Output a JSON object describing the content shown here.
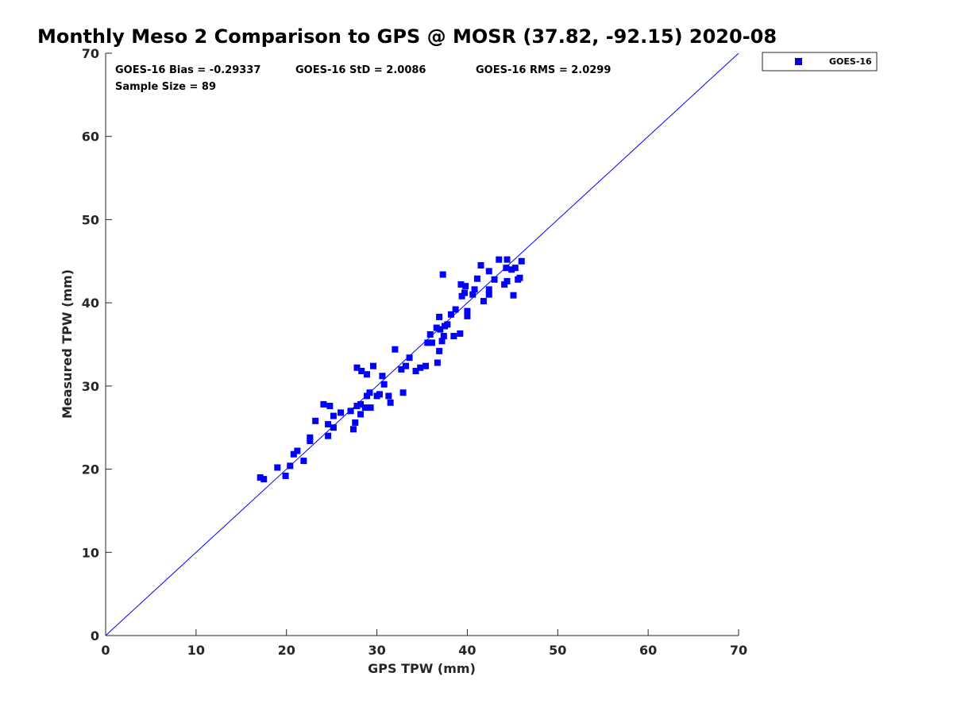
{
  "chart_data": {
    "type": "scatter",
    "title": "Monthly Meso 2 Comparison to GPS @ MOSR (37.82, -92.15) 2020-08",
    "xlabel": "GPS TPW (mm)",
    "ylabel": "Measured TPW (mm)",
    "xlim": [
      0,
      70
    ],
    "ylim": [
      0,
      70
    ],
    "xticks": [
      "0",
      "10",
      "20",
      "30",
      "40",
      "50",
      "60",
      "70"
    ],
    "yticks": [
      "0",
      "10",
      "20",
      "30",
      "40",
      "50",
      "60",
      "70"
    ],
    "grid": false,
    "legend_position": "outside-top-right",
    "reference_line": {
      "from": [
        0,
        0
      ],
      "to": [
        70,
        70
      ],
      "color": "#0000ff"
    },
    "stats": {
      "bias": "GOES-16 Bias = -0.29337",
      "std": "GOES-16 StD = 2.0086",
      "rms": "GOES-16 RMS = 2.0299",
      "sample": "Sample Size = 89"
    },
    "series": [
      {
        "name": "GOES-16",
        "color": "#0000ff",
        "marker": "square",
        "points": [
          [
            17.1,
            19.0
          ],
          [
            17.5,
            18.8
          ],
          [
            19.0,
            20.2
          ],
          [
            19.9,
            19.2
          ],
          [
            20.4,
            20.4
          ],
          [
            20.8,
            21.8
          ],
          [
            21.2,
            22.2
          ],
          [
            21.9,
            21.0
          ],
          [
            22.6,
            23.4
          ],
          [
            22.6,
            23.8
          ],
          [
            24.1,
            27.8
          ],
          [
            24.6,
            25.4
          ],
          [
            24.6,
            24.0
          ],
          [
            24.8,
            27.6
          ],
          [
            25.2,
            26.4
          ],
          [
            25.2,
            25.0
          ],
          [
            27.1,
            27.0
          ],
          [
            27.4,
            24.8
          ],
          [
            27.6,
            25.6
          ],
          [
            27.8,
            27.6
          ],
          [
            27.8,
            32.2
          ],
          [
            28.2,
            27.8
          ],
          [
            28.2,
            26.6
          ],
          [
            28.3,
            31.8
          ],
          [
            28.7,
            27.4
          ],
          [
            28.9,
            28.8
          ],
          [
            28.9,
            31.4
          ],
          [
            29.2,
            29.2
          ],
          [
            29.3,
            27.4
          ],
          [
            29.6,
            32.4
          ],
          [
            30.0,
            28.8
          ],
          [
            30.3,
            29.0
          ],
          [
            30.6,
            31.2
          ],
          [
            31.3,
            28.8
          ],
          [
            31.5,
            28.0
          ],
          [
            32.0,
            34.4
          ],
          [
            32.7,
            32.0
          ],
          [
            32.9,
            29.2
          ],
          [
            33.2,
            32.4
          ],
          [
            34.3,
            31.8
          ],
          [
            34.8,
            32.2
          ],
          [
            35.4,
            32.4
          ],
          [
            35.6,
            35.2
          ],
          [
            35.9,
            36.2
          ],
          [
            36.1,
            35.2
          ],
          [
            36.6,
            37.0
          ],
          [
            36.7,
            32.8
          ],
          [
            36.9,
            34.2
          ],
          [
            36.9,
            38.3
          ],
          [
            37.0,
            36.8
          ],
          [
            37.2,
            35.4
          ],
          [
            37.3,
            43.4
          ],
          [
            37.4,
            36.0
          ],
          [
            37.5,
            37.2
          ],
          [
            37.8,
            37.4
          ],
          [
            38.5,
            36.0
          ],
          [
            38.7,
            39.2
          ],
          [
            39.2,
            36.3
          ],
          [
            39.3,
            42.2
          ],
          [
            39.4,
            40.8
          ],
          [
            39.7,
            41.2
          ],
          [
            39.8,
            42.0
          ],
          [
            40.0,
            38.4
          ],
          [
            40.0,
            39.0
          ],
          [
            40.6,
            41.0
          ],
          [
            40.8,
            41.6
          ],
          [
            41.1,
            42.9
          ],
          [
            41.5,
            44.5
          ],
          [
            42.4,
            41.0
          ],
          [
            42.4,
            41.6
          ],
          [
            42.4,
            43.8
          ],
          [
            43.5,
            45.2
          ],
          [
            44.1,
            42.2
          ],
          [
            44.3,
            44.2
          ],
          [
            44.4,
            42.6
          ],
          [
            44.4,
            45.2
          ],
          [
            44.9,
            44.0
          ],
          [
            45.1,
            40.9
          ],
          [
            45.3,
            44.2
          ],
          [
            45.6,
            42.8
          ],
          [
            45.8,
            43.0
          ],
          [
            23.2,
            25.8
          ],
          [
            26.0,
            26.8
          ],
          [
            30.8,
            30.2
          ],
          [
            33.6,
            33.4
          ],
          [
            38.2,
            38.6
          ],
          [
            41.8,
            40.2
          ],
          [
            43.0,
            42.8
          ],
          [
            46.0,
            45.0
          ]
        ]
      }
    ]
  }
}
